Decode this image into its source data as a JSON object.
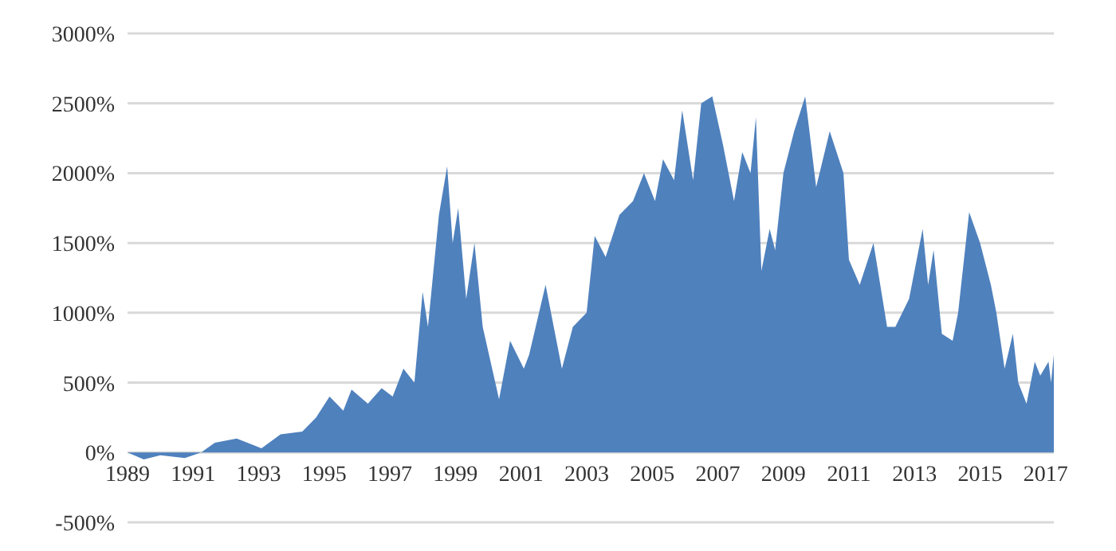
{
  "chart_data": {
    "type": "area",
    "color": "#4f81bd",
    "grid": "y",
    "x": [
      "1989-01",
      "1989-07",
      "1990-01",
      "1990-10",
      "1991-04",
      "1991-09",
      "1992-05",
      "1993-02",
      "1993-09",
      "1994-05",
      "1994-10",
      "1995-03",
      "1995-08",
      "1995-11",
      "1996-05",
      "1996-10",
      "1997-02",
      "1997-06",
      "1997-10",
      "1998-01",
      "1998-03",
      "1998-07",
      "1998-10",
      "1998-12",
      "1999-02",
      "1999-05",
      "1999-08",
      "1999-11",
      "2000-05",
      "2000-09",
      "2001-02",
      "2001-04",
      "2001-10",
      "2002-04",
      "2002-08",
      "2003-01",
      "2003-04",
      "2003-08",
      "2004-01",
      "2004-06",
      "2004-10",
      "2005-02",
      "2005-05",
      "2005-09",
      "2005-12",
      "2006-04",
      "2006-07",
      "2006-11",
      "2007-03",
      "2007-07",
      "2007-10",
      "2008-01",
      "2008-03",
      "2008-05",
      "2008-08",
      "2008-10",
      "2009-01",
      "2009-05",
      "2009-09",
      "2010-01",
      "2010-06",
      "2010-11",
      "2011-01",
      "2011-05",
      "2011-10",
      "2012-03",
      "2012-06",
      "2012-11",
      "2013-04",
      "2013-06",
      "2013-08",
      "2013-11",
      "2014-03",
      "2014-05",
      "2014-09",
      "2015-01",
      "2015-05",
      "2015-07",
      "2015-10",
      "2016-01",
      "2016-03",
      "2016-06",
      "2016-09",
      "2016-11",
      "2017-02",
      "2017-03",
      "2017-04"
    ],
    "values": [
      0,
      -50,
      -20,
      -40,
      0,
      70,
      100,
      30,
      130,
      150,
      250,
      400,
      300,
      450,
      350,
      460,
      400,
      600,
      500,
      1150,
      900,
      1700,
      2050,
      1500,
      1750,
      1100,
      1500,
      900,
      380,
      800,
      600,
      700,
      1200,
      600,
      900,
      1000,
      1550,
      1400,
      1700,
      1800,
      2000,
      1800,
      2100,
      1950,
      2450,
      1950,
      2500,
      2550,
      2200,
      1800,
      2150,
      2000,
      2400,
      1300,
      1600,
      1450,
      2000,
      2300,
      2550,
      1900,
      2300,
      2000,
      1380,
      1200,
      1500,
      900,
      900,
      1100,
      1600,
      1200,
      1450,
      850,
      800,
      1000,
      1720,
      1500,
      1200,
      1000,
      600,
      850,
      500,
      350,
      650,
      550,
      650,
      500,
      700
    ],
    "xlim": [
      "1989-01",
      "2017-04"
    ],
    "xticks": [
      "1989",
      "1991",
      "1993",
      "1995",
      "1997",
      "1999",
      "2001",
      "2003",
      "2005",
      "2007",
      "2009",
      "2011",
      "2013",
      "2015",
      "2017"
    ],
    "ylim": [
      -500,
      3000
    ],
    "yticks": [
      {
        "value": -500,
        "label": "-500%"
      },
      {
        "value": 0,
        "label": "0%"
      },
      {
        "value": 500,
        "label": "500%"
      },
      {
        "value": 1000,
        "label": "1000%"
      },
      {
        "value": 1500,
        "label": "1500%"
      },
      {
        "value": 2000,
        "label": "2000%"
      },
      {
        "value": 2500,
        "label": "2500%"
      },
      {
        "value": 3000,
        "label": "3000%"
      }
    ]
  }
}
